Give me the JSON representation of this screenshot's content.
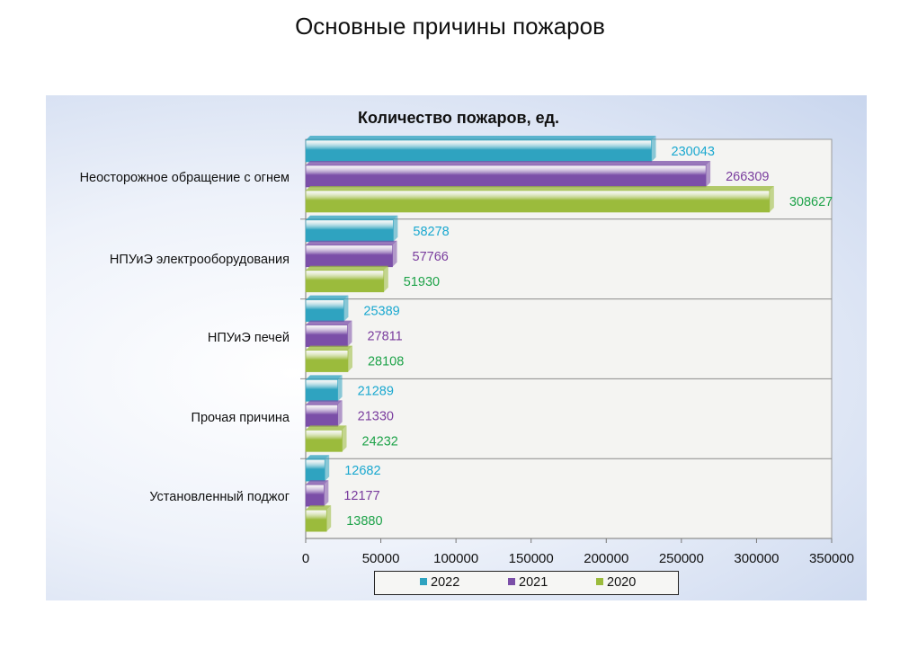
{
  "page_title": "Основные причины пожаров",
  "chart_data": {
    "type": "bar",
    "orientation": "horizontal",
    "title": "Количество пожаров, ед.",
    "categories": [
      "Неосторожное обращение с огнем",
      "НПУиЭ электрооборудования",
      "НПУиЭ печей",
      "Прочая причина",
      "Установленный поджог"
    ],
    "series": [
      {
        "name": "2022",
        "color": "#2fa3c0",
        "label_color": "#1aa8d0",
        "values": [
          230043,
          58278,
          25389,
          21289,
          12682
        ]
      },
      {
        "name": "2021",
        "color": "#7b4fa8",
        "label_color": "#7a3d9e",
        "values": [
          266309,
          57766,
          27811,
          21330,
          12177
        ]
      },
      {
        "name": "2020",
        "color": "#9bbb3c",
        "label_color": "#1fa34a",
        "values": [
          308627,
          51930,
          28108,
          24232,
          13880
        ]
      }
    ],
    "xlim": [
      0,
      350000
    ],
    "xticks": [
      "0",
      "50000",
      "100000",
      "150000",
      "200000",
      "250000",
      "300000",
      "350000"
    ],
    "grid": "horizontal lines between categories",
    "legend": "bottom"
  }
}
